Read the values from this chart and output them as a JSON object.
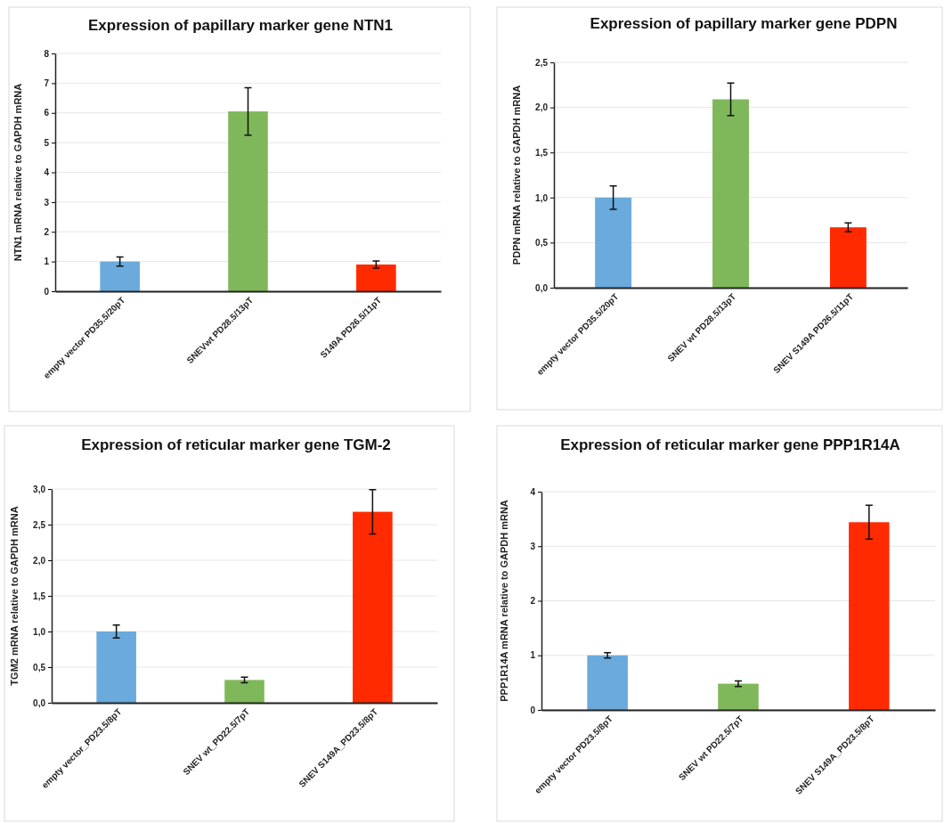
{
  "chart_data": [
    {
      "type": "bar",
      "title": "Expression of papillary marker gene NTN1",
      "ylabel": "NTN1 mRNA relative to GAPDH mRNA",
      "categories": [
        "empty vector PD35.5/20pT",
        "SNEVwt PD28.5/13pT",
        "S149A PD26.5/11pT"
      ],
      "values": [
        1.0,
        6.05,
        0.9
      ],
      "errors": [
        0.15,
        0.8,
        0.12
      ],
      "colors": [
        "#6aaadc",
        "#7fb85a",
        "#ff2a00"
      ],
      "ylim": [
        0,
        8
      ],
      "yticks": [
        0,
        1,
        2,
        3,
        4,
        5,
        6,
        7,
        8
      ],
      "grid": "y"
    },
    {
      "type": "bar",
      "title": "Expression of papillary marker gene PDPN",
      "ylabel": "PDPN mRNA relative to GAPDH mRNA",
      "categories": [
        "empty vector PD35.5/20pT",
        "SNEV wt PD28.5/13pT",
        "SNEV S149A PD26.5/11pT"
      ],
      "values": [
        1.0,
        2.09,
        0.67
      ],
      "errors": [
        0.13,
        0.18,
        0.05
      ],
      "colors": [
        "#6aaadc",
        "#7fb85a",
        "#ff2a00"
      ],
      "ylim": [
        0,
        2.5
      ],
      "yticks": [
        {
          "value": 0,
          "label": "0,0"
        },
        {
          "value": 0.5,
          "label": "0,5"
        },
        {
          "value": 1,
          "label": "1,0"
        },
        {
          "value": 1.5,
          "label": "1,5"
        },
        {
          "value": 2,
          "label": "2,0"
        },
        {
          "value": 2.5,
          "label": "2,5"
        }
      ],
      "grid": "y"
    },
    {
      "type": "bar",
      "title": "Expression of reticular marker gene TGM-2",
      "ylabel": "TGM2 mRNA relative to GAPDH mRNA",
      "categories": [
        "empty vector_PD23.5/8pT",
        "SNEV wt_PD22.5/7pT",
        "SNEV S149A_PD23.5/8pT"
      ],
      "values": [
        1.0,
        0.32,
        2.68
      ],
      "errors": [
        0.09,
        0.04,
        0.31
      ],
      "colors": [
        "#6aaadc",
        "#7fb85a",
        "#ff2a00"
      ],
      "ylim": [
        0,
        3
      ],
      "yticks": [
        {
          "value": 0,
          "label": "0,0"
        },
        {
          "value": 0.5,
          "label": "0,5"
        },
        {
          "value": 1,
          "label": "1,0"
        },
        {
          "value": 1.5,
          "label": "1,5"
        },
        {
          "value": 2,
          "label": "2,0"
        },
        {
          "value": 2.5,
          "label": "2,5"
        },
        {
          "value": 3,
          "label": "3,0"
        }
      ],
      "grid": "y"
    },
    {
      "type": "bar",
      "title": "Expression of reticular marker gene PPP1R14A",
      "ylabel": "PPP1R14A mRNA relative to GAPDH mRNA",
      "categories": [
        "empty vector PD23.5/8pT",
        "SNEV wt PD22.5/7pT",
        "SNEV S149A_PD23.5/8pT"
      ],
      "values": [
        1.0,
        0.48,
        3.44
      ],
      "errors": [
        0.05,
        0.05,
        0.31
      ],
      "colors": [
        "#6aaadc",
        "#7fb85a",
        "#ff2a00"
      ],
      "ylim": [
        0,
        4
      ],
      "yticks": [
        0,
        1,
        2,
        3,
        4
      ],
      "grid": "y"
    }
  ]
}
